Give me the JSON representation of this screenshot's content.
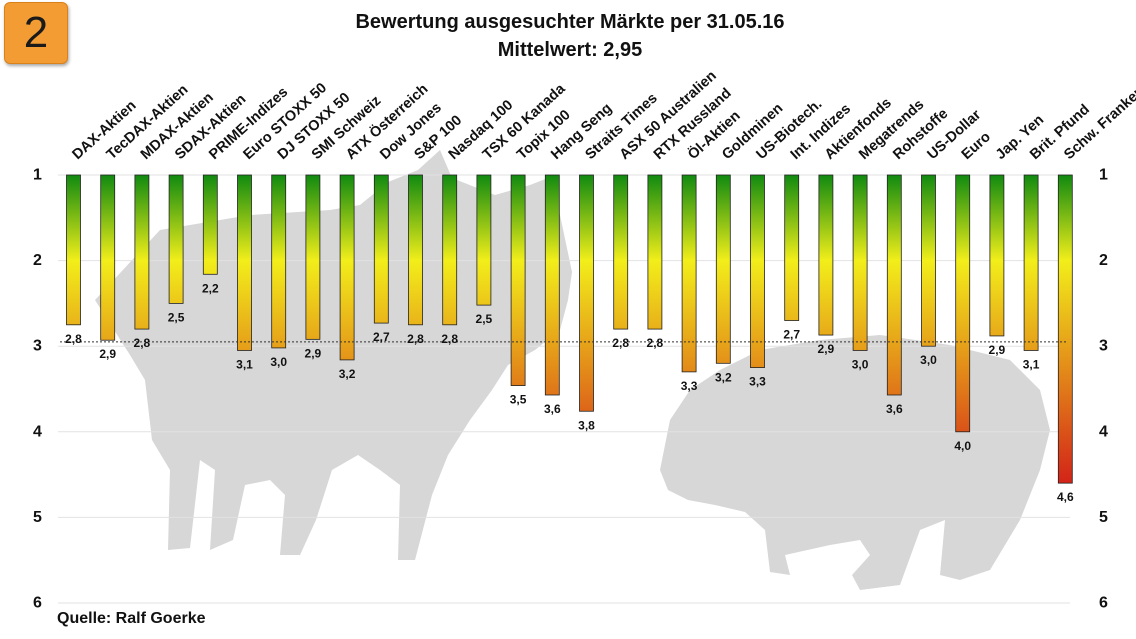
{
  "badge": "2",
  "chart_data": {
    "type": "bar",
    "title": "Bewertung ausgesuchter Märkte per 31.05.16",
    "subtitle": "Mittelwert:  2,95",
    "source": "Quelle: Ralf Goerke",
    "mean": 2.95,
    "ylim": [
      1,
      6
    ],
    "y_ticks": [
      "1",
      "2",
      "3",
      "4",
      "5",
      "6"
    ],
    "y_inverted": true,
    "grid": true,
    "colors": {
      "low": "#108a10",
      "mid": "#f2ee1a",
      "high": "#d11818"
    },
    "categories": [
      "DAX-Aktien",
      "TecDAX-Aktien",
      "MDAX-Aktien",
      "SDAX-Aktien",
      "PRIME-Indizes",
      "Euro STOXX 50",
      "DJ STOXX 50",
      "SMI Schweiz",
      "ATX Österreich",
      "Dow Jones",
      "S&P 100",
      "Nasdaq 100",
      "TSX 60 Kanada",
      "Topix 100",
      "Hang Seng",
      "Straits Times",
      "ASX 50 Australien",
      "RTX Russland",
      "Öl-Aktien",
      "Goldminen",
      "US-Biotech.",
      "Int. Indizes",
      "Aktienfonds",
      "Megatrends",
      "Rohstoffe",
      "US-Dollar",
      "Euro",
      "Jap. Yen",
      "Brit. Pfund",
      "Schw. Franken"
    ],
    "values": [
      2.75,
      2.93,
      2.8,
      2.5,
      2.16,
      3.05,
      3.02,
      2.92,
      3.16,
      2.73,
      2.75,
      2.75,
      2.52,
      3.46,
      3.57,
      3.76,
      2.8,
      2.8,
      3.3,
      3.2,
      3.25,
      2.7,
      2.87,
      3.05,
      3.57,
      3.0,
      4.0,
      2.88,
      3.05,
      4.6
    ],
    "labels": [
      "2,8",
      "2,9",
      "2,8",
      "2,5",
      "2,2",
      "3,1",
      "3,0",
      "2,9",
      "3,2",
      "2,7",
      "2,8",
      "2,8",
      "2,5",
      "3,5",
      "3,6",
      "3,8",
      "2,8",
      "2,8",
      "3,3",
      "3,2",
      "3,3",
      "2,7",
      "2,9",
      "3,0",
      "3,6",
      "3,0",
      "4,0",
      "2,9",
      "3,1",
      "4,6"
    ]
  }
}
